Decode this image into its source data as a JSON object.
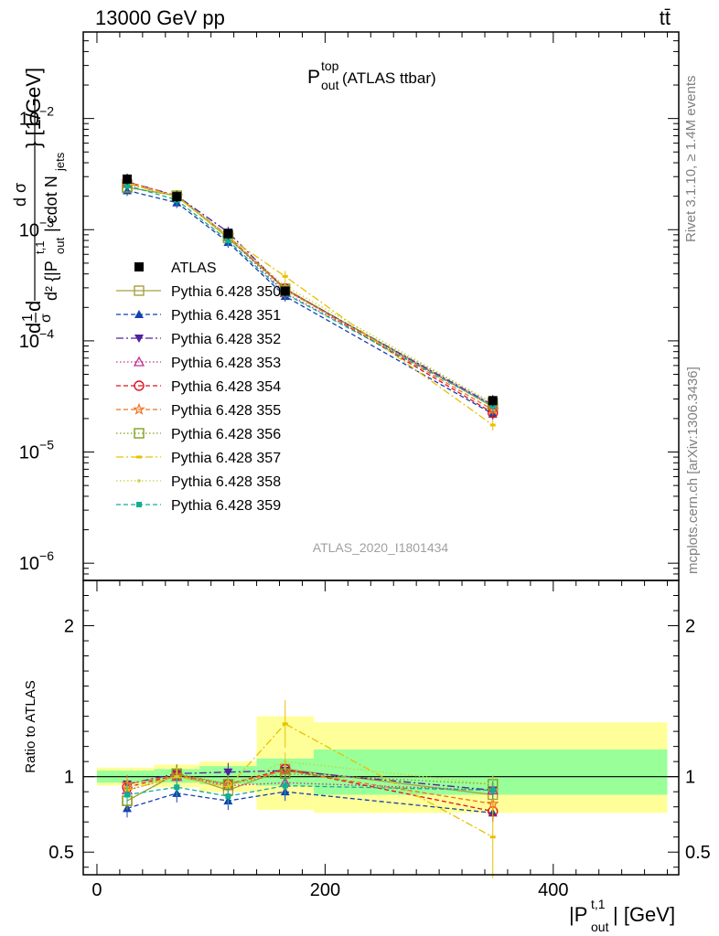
{
  "header": {
    "left": "13000 GeV pp",
    "right": "tt̄"
  },
  "side_texts": {
    "rivet": "Rivet 3.1.10, ≥ 1.4M events",
    "mcplots": "mcplots.cern.ch [arXiv:1306.3436]"
  },
  "chart_data": [
    {
      "type": "line",
      "title_main": "P",
      "title_sup": "top",
      "title_sub": "out",
      "title_tail": " (ATLAS ttbar)",
      "ylabel": "d²σ / d{|P_out^t,1| cdot N_jets} [1/GeV]",
      "ylabel_parts": {
        "a": "d",
        "frac_num": "1",
        "frac_den": "σ",
        "b": "d",
        "over_num": "d σ",
        "over_den": "d² {|P",
        "den_sup": "t,1",
        "den_sub": "out",
        "den_tail": "| cdot N",
        "den_jets": "jets",
        "unit": "} [1/GeV]"
      },
      "analysis_id": "ATLAS_2020_I1801434",
      "yscale": "log",
      "ylim": [
        7e-07,
        0.06
      ],
      "xlim": [
        -12,
        510
      ],
      "y_ticks": [
        {
          "v": 1e-06,
          "mant": "10",
          "exp": "−6"
        },
        {
          "v": 1e-05,
          "mant": "10",
          "exp": "−5"
        },
        {
          "v": 0.0001,
          "mant": "10",
          "exp": "−4"
        },
        {
          "v": 0.001,
          "mant": "10",
          "exp": "−3"
        },
        {
          "v": 0.01,
          "mant": "10",
          "exp": "−2"
        }
      ],
      "legend_position": "left-middle",
      "x": [
        26.5,
        70,
        115,
        165,
        347
      ],
      "series": [
        {
          "name": "ATLAS",
          "color": "#000000",
          "marker": "square-filled",
          "dash": "none",
          "values": [
            0.00285,
            0.00198,
            0.00092,
            0.00028,
            2.9e-05
          ]
        },
        {
          "name": "Pythia 6.428 350",
          "color": "#a8a040",
          "marker": "square-open",
          "dash": "solid",
          "values": [
            0.0024,
            0.00202,
            0.00084,
            0.000295,
            2.55e-05
          ]
        },
        {
          "name": "Pythia 6.428 351",
          "color": "#1540b0",
          "marker": "triangle-up-filled",
          "dash": "dashed",
          "values": [
            0.00225,
            0.00175,
            0.00077,
            0.000252,
            2.2e-05
          ]
        },
        {
          "name": "Pythia 6.428 352",
          "color": "#5020a0",
          "marker": "triangle-down-filled",
          "dash": "dashdot",
          "values": [
            0.0027,
            0.00202,
            0.00095,
            0.00029,
            2.65e-05
          ]
        },
        {
          "name": "Pythia 6.428 353",
          "color": "#c03090",
          "marker": "triangle-up-open",
          "dash": "dotted",
          "values": [
            0.0026,
            0.00198,
            0.00086,
            0.00027,
            2.65e-05
          ]
        },
        {
          "name": "Pythia 6.428 354",
          "color": "#e01020",
          "marker": "circle-open",
          "dash": "dashed",
          "values": [
            0.00265,
            0.002,
            0.00087,
            0.000295,
            2.25e-05
          ]
        },
        {
          "name": "Pythia 6.428 355",
          "color": "#f07020",
          "marker": "star-open",
          "dash": "dashed",
          "values": [
            0.0027,
            0.002,
            0.00088,
            0.00029,
            2.4e-05
          ]
        },
        {
          "name": "Pythia 6.428 356",
          "color": "#80a020",
          "marker": "square-open",
          "dash": "dotted",
          "values": [
            0.0024,
            0.00202,
            0.00088,
            0.000285,
            2.75e-05
          ]
        },
        {
          "name": "Pythia 6.428 357",
          "color": "#e8c000",
          "marker": "dash",
          "dash": "dashdot",
          "values": [
            0.0026,
            0.00198,
            0.00086,
            0.00038,
            1.75e-05
          ]
        },
        {
          "name": "Pythia 6.428 358",
          "color": "#c8d040",
          "marker": "dot",
          "dash": "dotted",
          "values": [
            0.00265,
            0.00198,
            0.00086,
            0.00031,
            2.75e-05
          ]
        },
        {
          "name": "Pythia 6.428 359",
          "color": "#10b090",
          "marker": "square-small",
          "dash": "dashed",
          "values": [
            0.0025,
            0.00185,
            0.0008,
            0.000265,
            2.6e-05
          ]
        }
      ]
    },
    {
      "type": "line",
      "ylabel": "Ratio to ATLAS",
      "xlabel_parts": {
        "a": "|P",
        "sup": "t,1",
        "sub": "out",
        "b": "| [GeV]"
      },
      "ylim": [
        0.35,
        2.3
      ],
      "xlim": [
        -12,
        510
      ],
      "y_ticks": [
        0.5,
        1,
        2
      ],
      "x_ticks": [
        0,
        200,
        400
      ],
      "bins": [
        {
          "lo": 0,
          "hi": 50,
          "green": [
            0.96,
            1.04
          ],
          "yellow": [
            0.94,
            1.06
          ]
        },
        {
          "lo": 50,
          "hi": 90,
          "green": [
            0.96,
            1.05
          ],
          "yellow": [
            0.93,
            1.08
          ]
        },
        {
          "lo": 90,
          "hi": 140,
          "green": [
            0.95,
            1.07
          ],
          "yellow": [
            0.9,
            1.1
          ]
        },
        {
          "lo": 140,
          "hi": 190,
          "green": [
            0.94,
            1.12
          ],
          "yellow": [
            0.78,
            1.4
          ]
        },
        {
          "lo": 190,
          "hi": 500,
          "green": [
            0.88,
            1.18
          ],
          "yellow": [
            0.76,
            1.36
          ]
        }
      ],
      "x": [
        26.5,
        70,
        115,
        165,
        347
      ],
      "series": [
        {
          "name": "Pythia 6.428 350",
          "values": [
            0.84,
            1.02,
            0.91,
            1.05,
            0.88
          ]
        },
        {
          "name": "Pythia 6.428 351",
          "values": [
            0.79,
            0.89,
            0.84,
            0.9,
            0.76
          ]
        },
        {
          "name": "Pythia 6.428 352",
          "values": [
            0.95,
            1.02,
            1.03,
            1.04,
            0.91
          ]
        },
        {
          "name": "Pythia 6.428 353",
          "values": [
            0.91,
            1.0,
            0.94,
            0.96,
            0.91
          ]
        },
        {
          "name": "Pythia 6.428 354",
          "values": [
            0.93,
            1.01,
            0.95,
            1.05,
            0.77
          ]
        },
        {
          "name": "Pythia 6.428 355",
          "values": [
            0.95,
            1.01,
            0.95,
            1.04,
            0.82
          ]
        },
        {
          "name": "Pythia 6.428 356",
          "values": [
            0.84,
            1.02,
            0.95,
            1.02,
            0.95
          ]
        },
        {
          "name": "Pythia 6.428 357",
          "values": [
            0.91,
            1.0,
            0.93,
            1.35,
            0.6
          ]
        },
        {
          "name": "Pythia 6.428 358",
          "values": [
            0.93,
            1.0,
            0.93,
            1.1,
            0.95
          ]
        },
        {
          "name": "Pythia 6.428 359",
          "values": [
            0.88,
            0.93,
            0.87,
            0.94,
            0.91
          ]
        }
      ]
    }
  ]
}
